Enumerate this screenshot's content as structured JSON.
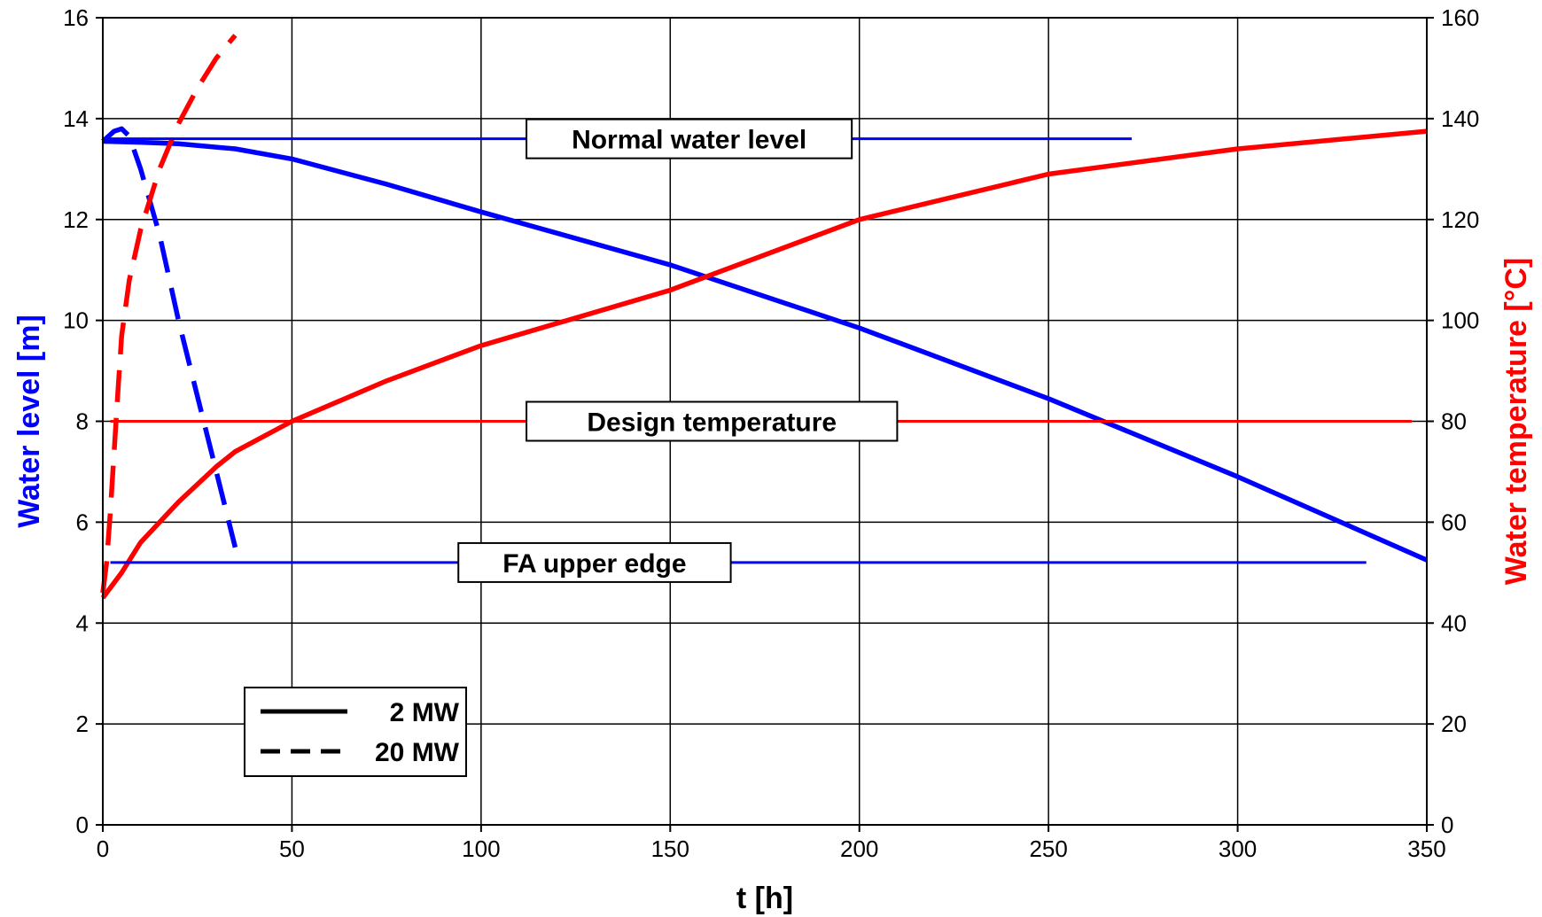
{
  "chart_data": {
    "type": "line",
    "xlabel": "t [h]",
    "ylabel_left": "Water level [m]",
    "ylabel_right": "Water temperature [°C]",
    "xlim": [
      0,
      350
    ],
    "ylim_left": [
      0,
      16
    ],
    "ylim_right": [
      0,
      160
    ],
    "x_ticks": [
      0,
      50,
      100,
      150,
      200,
      250,
      300,
      350
    ],
    "y_left_ticks": [
      0,
      2,
      4,
      6,
      8,
      10,
      12,
      14,
      16
    ],
    "y_right_ticks": [
      0,
      20,
      40,
      60,
      80,
      100,
      120,
      140,
      160
    ],
    "grid": true,
    "colors": {
      "level": "#0000ff",
      "temperature": "#ff0000"
    },
    "legend": {
      "placement": "bottom-left",
      "entries": [
        {
          "label": "2 MW",
          "style": "solid"
        },
        {
          "label": "20 MW",
          "style": "dashed"
        }
      ]
    },
    "series": [
      {
        "axis": "left",
        "color": "#0000ff",
        "dash": false,
        "x": [
          0,
          10,
          20,
          35,
          50,
          75,
          100,
          150,
          200,
          250,
          300,
          350
        ],
        "y": [
          13.55,
          13.53,
          13.5,
          13.4,
          13.2,
          12.7,
          12.15,
          11.1,
          9.85,
          8.45,
          6.9,
          5.25
        ]
      },
      {
        "axis": "left",
        "color": "#0000ff",
        "dash": true,
        "x": [
          0,
          3,
          5,
          7,
          10,
          15,
          20,
          25,
          30,
          35
        ],
        "y": [
          13.55,
          13.75,
          13.8,
          13.65,
          13.0,
          11.7,
          10.0,
          8.5,
          7.0,
          5.5
        ]
      },
      {
        "axis": "right",
        "color": "#ff0000",
        "dash": false,
        "x": [
          0,
          1,
          3,
          5,
          10,
          20,
          30,
          35,
          40,
          50,
          75,
          100,
          150,
          200,
          250,
          300,
          350
        ],
        "y": [
          45,
          46,
          48,
          50,
          56,
          64,
          71,
          74,
          76,
          80,
          88,
          95,
          106,
          120,
          129,
          134,
          137.5
        ]
      },
      {
        "axis": "right",
        "color": "#ff0000",
        "dash": true,
        "x": [
          0,
          1,
          2,
          3,
          4,
          5,
          7,
          10,
          15,
          20,
          25,
          30,
          35
        ],
        "y": [
          46,
          52,
          62,
          74,
          86,
          97,
          108,
          118,
          130,
          139,
          146,
          152,
          156.5
        ]
      }
    ],
    "reference_lines": [
      {
        "label": "Normal water level",
        "axis": "left",
        "value": 13.6,
        "x_start": 0,
        "x_end": 272,
        "color": "#0000ff",
        "label_x": [
          112,
          198
        ]
      },
      {
        "label": "Design temperature",
        "axis": "right",
        "value": 80,
        "x_start": 2,
        "x_end": 346,
        "color": "#ff0000",
        "label_x": [
          112,
          210
        ]
      },
      {
        "label": "FA upper edge",
        "axis": "left",
        "value": 5.2,
        "x_start": 2,
        "x_end": 334,
        "color": "#0000ff",
        "label_x": [
          94,
          166
        ]
      }
    ]
  }
}
